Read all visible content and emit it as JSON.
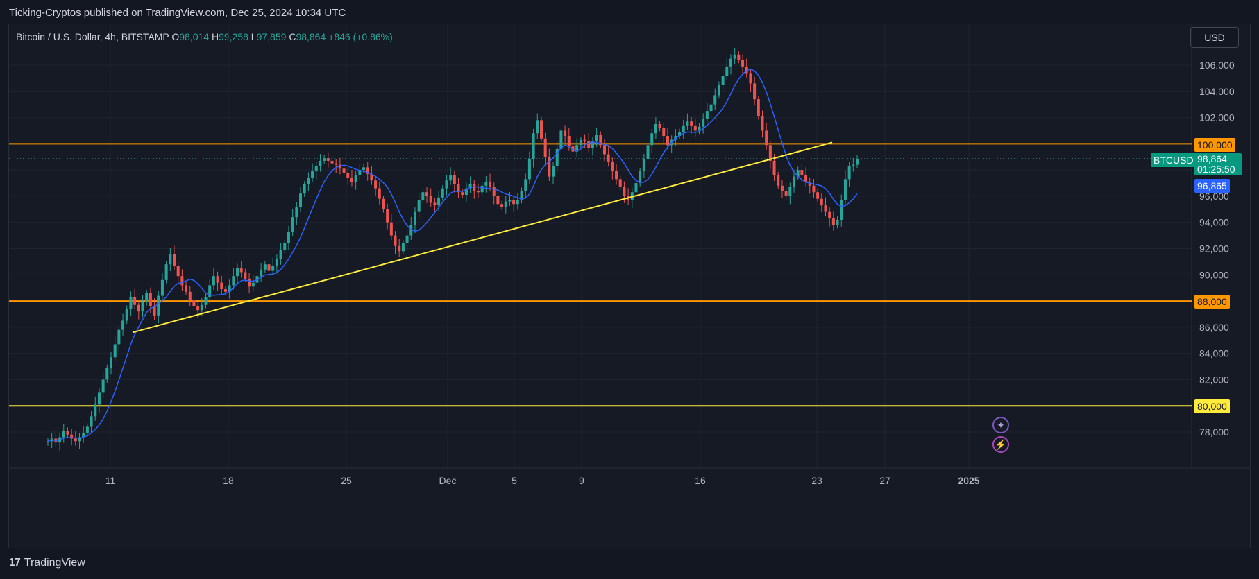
{
  "header": {
    "published": "Ticking-Cryptos published on TradingView.com, Dec 25, 2024 10:34 UTC"
  },
  "legend": {
    "symbol": "Bitcoin / U.S. Dollar, 4h, BITSTAMP",
    "o_label": "O",
    "o_value": "98,014",
    "h_label": "H",
    "h_value": "99,258",
    "l_label": "L",
    "l_value": "97,859",
    "c_label": "C",
    "c_value": "98,864",
    "change": "+846 (+0.86%)"
  },
  "currency_button": "USD",
  "price_axis": {
    "ticks": [
      "106,000",
      "104,000",
      "102,000",
      "100,000",
      "96,000",
      "94,000",
      "92,000",
      "90,000",
      "88,000",
      "86,000",
      "84,000",
      "82,000",
      "80,000",
      "78,000"
    ]
  },
  "time_axis": {
    "ticks": [
      "11",
      "18",
      "25",
      "Dec",
      "5",
      "9",
      "16",
      "23",
      "27",
      "2025"
    ]
  },
  "tags": {
    "level_100k": "100,000",
    "level_88k": "88,000",
    "level_80k": "80,000",
    "symbol_tag": "BTCUSD",
    "last_price": "98,864",
    "countdown": "01:25:50",
    "ma_value": "96,865"
  },
  "colors": {
    "background": "#161a25",
    "up": "#26a69a",
    "down": "#ef5350",
    "orange_line": "#ff9800",
    "yellow_line": "#ffeb3b",
    "ma": "#2962ff",
    "ma_tag": "#2962ff"
  },
  "footer": {
    "brand": "TradingView"
  },
  "icons": [
    "sparkle-icon",
    "lightning-icon"
  ],
  "chart_data": {
    "type": "candlestick",
    "title": "Bitcoin / U.S. Dollar, 4h, BITSTAMP",
    "ylim": [
      76800,
      108000
    ],
    "horizontal_levels": [
      100000,
      88000,
      80000
    ],
    "trendline": {
      "from": [
        "Nov 11",
        85600
      ],
      "to": [
        "Dec 23",
        100100
      ]
    },
    "last_price": 98864,
    "moving_average_last": 96865,
    "x_ticks": [
      "11",
      "18",
      "25",
      "Dec",
      "5",
      "9",
      "16",
      "23",
      "27",
      "2025"
    ],
    "closes": [
      77300,
      77500,
      77200,
      77600,
      78100,
      77800,
      77500,
      77300,
      77600,
      77900,
      78400,
      79200,
      80100,
      81000,
      82000,
      82900,
      83700,
      84700,
      85800,
      86500,
      87400,
      88300,
      87700,
      87200,
      87900,
      88600,
      87600,
      86900,
      88400,
      89600,
      90800,
      91600,
      90700,
      89900,
      89200,
      88700,
      88100,
      87600,
      87300,
      87700,
      88300,
      89200,
      89900,
      89400,
      88900,
      88700,
      89200,
      89900,
      90500,
      90200,
      89700,
      89100,
      89400,
      89900,
      90400,
      90800,
      90300,
      90700,
      91200,
      91900,
      92400,
      93300,
      94400,
      95200,
      96200,
      96900,
      97400,
      97900,
      98300,
      98700,
      98900,
      98700,
      98500,
      98400,
      98100,
      97800,
      97400,
      97100,
      97600,
      98000,
      98200,
      97700,
      97200,
      96600,
      95800,
      95000,
      94000,
      93000,
      92200,
      91800,
      92400,
      93000,
      93800,
      94800,
      95700,
      96300,
      96000,
      95500,
      95300,
      95900,
      96600,
      97200,
      97600,
      96900,
      96300,
      96100,
      96600,
      96900,
      96400,
      96300,
      96800,
      97100,
      96700,
      96000,
      95400,
      95200,
      95600,
      95700,
      95400,
      95700,
      96400,
      97300,
      98800,
      100800,
      101800,
      100400,
      99000,
      97500,
      98300,
      99600,
      101000,
      100600,
      99800,
      99400,
      99900,
      100300,
      100200,
      99700,
      100200,
      100700,
      99900,
      99200,
      98600,
      97900,
      97300,
      96700,
      96000,
      95700,
      96300,
      97000,
      97900,
      98800,
      99900,
      100800,
      101500,
      101200,
      100600,
      99900,
      100300,
      100600,
      100900,
      101400,
      101700,
      101400,
      101000,
      101300,
      101900,
      102500,
      103000,
      103700,
      104500,
      105200,
      105900,
      106500,
      106800,
      106400,
      105900,
      105400,
      104600,
      103400,
      102100,
      101000,
      99900,
      98700,
      97600,
      96800,
      96400,
      96000,
      96700,
      97500,
      98000,
      97600,
      97100,
      96800,
      96300,
      95800,
      95300,
      94800,
      94300,
      93800,
      94200,
      95700,
      97300,
      98300,
      98400,
      98864
    ]
  }
}
